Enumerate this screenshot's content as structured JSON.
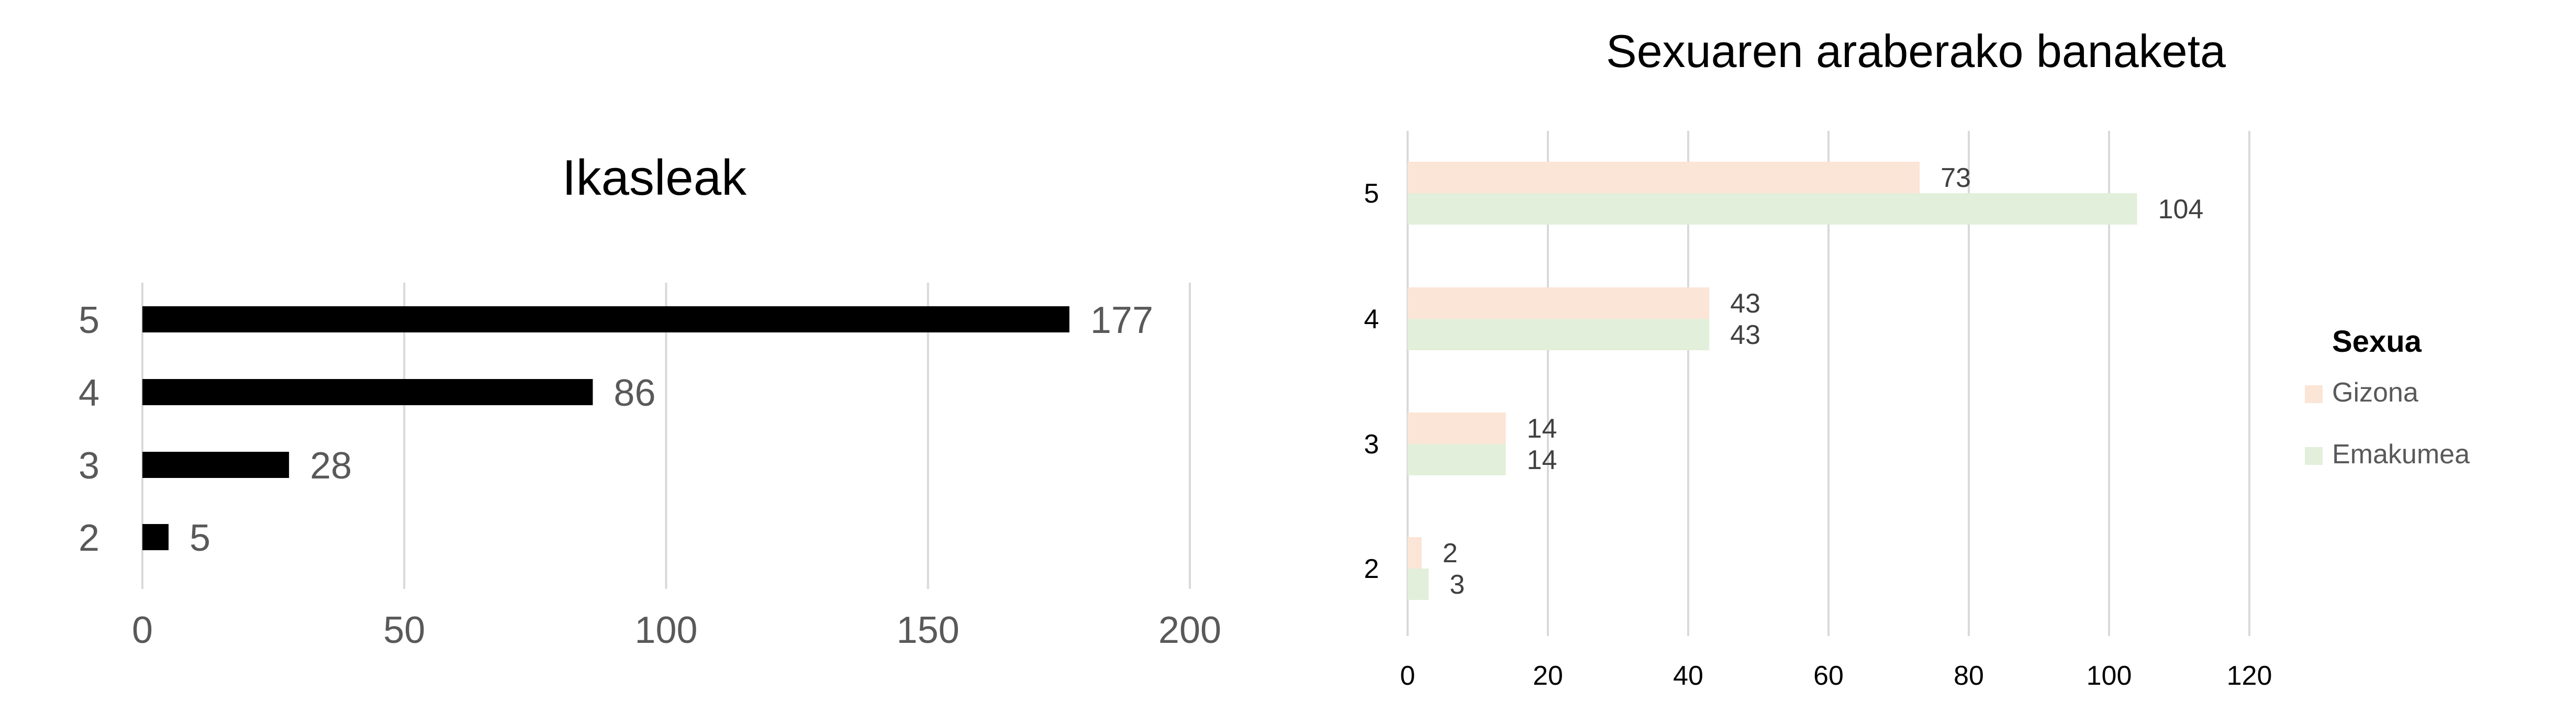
{
  "chart_data": [
    {
      "type": "bar",
      "orientation": "horizontal",
      "title": "Ikasleak",
      "categories": [
        "2",
        "3",
        "4",
        "5"
      ],
      "values": [
        5,
        28,
        86,
        177
      ],
      "data_labels": [
        "5",
        "28",
        "86",
        "177"
      ],
      "xlim": [
        0,
        200
      ],
      "x_ticks": [
        "0",
        "50",
        "100",
        "150",
        "200"
      ],
      "xlabel": "",
      "ylabel": "",
      "grid": "vertical",
      "legend": "none",
      "colors": {
        "bar": "#000000",
        "grid": "#d9d9d9",
        "text": "#595959",
        "title": "#000000"
      }
    },
    {
      "type": "bar",
      "orientation": "horizontal",
      "title": "Sexuaren araberako banaketa",
      "categories": [
        "2",
        "3",
        "4",
        "5"
      ],
      "series": [
        {
          "name": "Gizona",
          "values": [
            2,
            14,
            43,
            73
          ],
          "data_labels": [
            "2",
            "14",
            "43",
            "73"
          ],
          "color": "#fbe5d6"
        },
        {
          "name": "Emakumea",
          "values": [
            3,
            14,
            43,
            104
          ],
          "data_labels": [
            "3",
            "14",
            "43",
            "104"
          ],
          "color": "#e2efda"
        }
      ],
      "xlim": [
        0,
        120
      ],
      "x_ticks": [
        "0",
        "20",
        "40",
        "60",
        "80",
        "100",
        "120"
      ],
      "xlabel": "",
      "ylabel": "",
      "grid": "vertical",
      "legend": {
        "title": "Sexua",
        "placement": "right"
      },
      "colors": {
        "grid": "#d9d9d9",
        "text": "#000000",
        "label": "#404040",
        "legend_text": "#595959"
      }
    }
  ]
}
